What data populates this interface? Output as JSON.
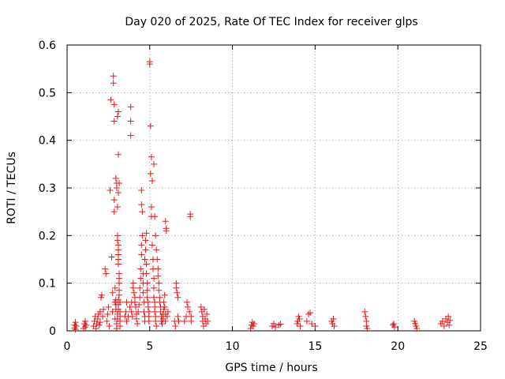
{
  "chart_data": {
    "type": "scatter",
    "title": "Day 020 of 2025, Rate Of TEC Index for receiver glps",
    "xlabel": "GPS time / hours",
    "ylabel": "ROTI / TECUs",
    "xlim": [
      0,
      25
    ],
    "ylim": [
      0,
      0.6
    ],
    "xticks": [
      "0",
      "5",
      "10",
      "15",
      "20",
      "25"
    ],
    "yticks": [
      "0",
      "0.1",
      "0.2",
      "0.3",
      "0.4",
      "0.5",
      "0.6"
    ],
    "grid": true,
    "marker": "plus",
    "color": "#e41a1c",
    "series": [
      {
        "name": "ROTI",
        "points": [
          [
            0.45,
            0.012
          ],
          [
            0.45,
            0.006
          ],
          [
            0.5,
            0.018
          ],
          [
            0.5,
            0.003
          ],
          [
            0.55,
            0.01
          ],
          [
            1.0,
            0.005
          ],
          [
            1.05,
            0.015
          ],
          [
            1.1,
            0.02
          ],
          [
            1.1,
            0.008
          ],
          [
            1.15,
            0.012
          ],
          [
            1.6,
            0.01
          ],
          [
            1.65,
            0.02
          ],
          [
            1.7,
            0.03
          ],
          [
            1.75,
            0.005
          ],
          [
            1.8,
            0.015
          ],
          [
            1.85,
            0.025
          ],
          [
            1.9,
            0.035
          ],
          [
            1.95,
            0.012
          ],
          [
            2.0,
            0.018
          ],
          [
            2.0,
            0.04
          ],
          [
            2.05,
            0.07
          ],
          [
            2.1,
            0.075
          ],
          [
            2.15,
            0.03
          ],
          [
            2.2,
            0.045
          ],
          [
            2.3,
            0.13
          ],
          [
            2.35,
            0.12
          ],
          [
            2.4,
            0.02
          ],
          [
            2.45,
            0.035
          ],
          [
            2.5,
            0.05
          ],
          [
            2.55,
            0.01
          ],
          [
            2.6,
            0.295
          ],
          [
            2.65,
            0.485
          ],
          [
            2.7,
            0.155
          ],
          [
            2.75,
            0.04
          ],
          [
            2.75,
            0.08
          ],
          [
            2.8,
            0.535
          ],
          [
            2.8,
            0.52
          ],
          [
            2.85,
            0.475
          ],
          [
            2.85,
            0.44
          ],
          [
            2.85,
            0.25
          ],
          [
            2.85,
            0.275
          ],
          [
            2.9,
            0.09
          ],
          [
            2.9,
            0.06
          ],
          [
            2.9,
            0.025
          ],
          [
            2.95,
            0.32
          ],
          [
            3.0,
            0.31
          ],
          [
            3.0,
            0.3
          ],
          [
            3.05,
            0.26
          ],
          [
            3.05,
            0.2
          ],
          [
            3.05,
            0.19
          ],
          [
            3.1,
            0.18
          ],
          [
            3.1,
            0.17
          ],
          [
            3.1,
            0.16
          ],
          [
            3.1,
            0.15
          ],
          [
            3.1,
            0.14
          ],
          [
            3.15,
            0.12
          ],
          [
            3.15,
            0.11
          ],
          [
            3.15,
            0.1
          ],
          [
            3.15,
            0.085
          ],
          [
            3.15,
            0.075
          ],
          [
            3.1,
            0.065
          ],
          [
            3.1,
            0.055
          ],
          [
            3.1,
            0.045
          ],
          [
            3.05,
            0.035
          ],
          [
            3.05,
            0.025
          ],
          [
            3.0,
            0.015
          ],
          [
            3.0,
            0.005
          ],
          [
            2.95,
            0.045
          ],
          [
            2.95,
            0.055
          ],
          [
            2.95,
            0.065
          ],
          [
            3.2,
            0.06
          ],
          [
            3.2,
            0.04
          ],
          [
            3.2,
            0.03
          ],
          [
            3.2,
            0.02
          ],
          [
            3.2,
            0.01
          ],
          [
            3.05,
            0.45
          ],
          [
            3.1,
            0.46
          ],
          [
            3.1,
            0.37
          ],
          [
            3.15,
            0.31
          ],
          [
            3.1,
            0.29
          ],
          [
            3.5,
            0.03
          ],
          [
            3.55,
            0.04
          ],
          [
            3.6,
            0.02
          ],
          [
            3.6,
            0.06
          ],
          [
            3.7,
            0.03
          ],
          [
            3.8,
            0.05
          ],
          [
            3.85,
            0.47
          ],
          [
            3.85,
            0.44
          ],
          [
            3.85,
            0.41
          ],
          [
            3.9,
            0.06
          ],
          [
            3.9,
            0.04
          ],
          [
            3.95,
            0.03
          ],
          [
            4.0,
            0.1
          ],
          [
            4.0,
            0.09
          ],
          [
            4.05,
            0.08
          ],
          [
            4.1,
            0.07
          ],
          [
            4.1,
            0.06
          ],
          [
            4.15,
            0.05
          ],
          [
            4.2,
            0.035
          ],
          [
            4.2,
            0.025
          ],
          [
            4.25,
            0.015
          ],
          [
            4.3,
            0.04
          ],
          [
            4.35,
            0.055
          ],
          [
            4.4,
            0.07
          ],
          [
            4.4,
            0.09
          ],
          [
            4.45,
            0.11
          ],
          [
            4.45,
            0.13
          ],
          [
            4.5,
            0.16
          ],
          [
            4.5,
            0.18
          ],
          [
            4.55,
            0.2
          ],
          [
            4.55,
            0.25
          ],
          [
            4.5,
            0.265
          ],
          [
            4.5,
            0.295
          ],
          [
            4.6,
            0.12
          ],
          [
            4.6,
            0.1
          ],
          [
            4.6,
            0.08
          ],
          [
            4.65,
            0.06
          ],
          [
            4.65,
            0.04
          ],
          [
            4.7,
            0.03
          ],
          [
            4.7,
            0.02
          ],
          [
            4.7,
            0.15
          ],
          [
            4.75,
            0.17
          ],
          [
            4.75,
            0.19
          ],
          [
            4.8,
            0.205
          ],
          [
            4.8,
            0.14
          ],
          [
            4.8,
            0.12
          ],
          [
            4.85,
            0.1
          ],
          [
            4.85,
            0.085
          ],
          [
            4.85,
            0.07
          ],
          [
            4.9,
            0.06
          ],
          [
            4.9,
            0.05
          ],
          [
            4.95,
            0.04
          ],
          [
            4.95,
            0.03
          ],
          [
            4.95,
            0.02
          ],
          [
            5.0,
            0.565
          ],
          [
            5.0,
            0.56
          ],
          [
            5.05,
            0.43
          ],
          [
            5.1,
            0.365
          ],
          [
            5.05,
            0.33
          ],
          [
            5.15,
            0.315
          ],
          [
            5.1,
            0.26
          ],
          [
            5.1,
            0.24
          ],
          [
            5.15,
            0.18
          ],
          [
            5.2,
            0.15
          ],
          [
            5.2,
            0.13
          ],
          [
            5.25,
            0.11
          ],
          [
            5.25,
            0.09
          ],
          [
            5.25,
            0.07
          ],
          [
            5.3,
            0.06
          ],
          [
            5.3,
            0.05
          ],
          [
            5.3,
            0.04
          ],
          [
            5.35,
            0.03
          ],
          [
            5.35,
            0.02
          ],
          [
            5.4,
            0.01
          ],
          [
            5.25,
            0.35
          ],
          [
            5.3,
            0.24
          ],
          [
            5.35,
            0.2
          ],
          [
            5.4,
            0.17
          ],
          [
            5.45,
            0.15
          ],
          [
            5.5,
            0.13
          ],
          [
            5.5,
            0.115
          ],
          [
            5.55,
            0.1
          ],
          [
            5.55,
            0.085
          ],
          [
            5.6,
            0.07
          ],
          [
            5.6,
            0.06
          ],
          [
            5.65,
            0.05
          ],
          [
            5.65,
            0.04
          ],
          [
            5.7,
            0.03
          ],
          [
            5.7,
            0.02
          ],
          [
            5.75,
            0.015
          ],
          [
            5.8,
            0.025
          ],
          [
            5.8,
            0.035
          ],
          [
            5.85,
            0.045
          ],
          [
            5.85,
            0.06
          ],
          [
            5.9,
            0.075
          ],
          [
            5.9,
            0.05
          ],
          [
            5.95,
            0.035
          ],
          [
            5.95,
            0.02
          ],
          [
            5.95,
            0.23
          ],
          [
            6.0,
            0.215
          ],
          [
            6.0,
            0.21
          ],
          [
            6.05,
            0.03
          ],
          [
            6.1,
            0.04
          ],
          [
            6.5,
            0.02
          ],
          [
            6.55,
            0.01
          ],
          [
            6.6,
            0.1
          ],
          [
            6.6,
            0.09
          ],
          [
            6.65,
            0.08
          ],
          [
            6.7,
            0.07
          ],
          [
            6.7,
            0.03
          ],
          [
            6.75,
            0.02
          ],
          [
            7.1,
            0.02
          ],
          [
            7.2,
            0.03
          ],
          [
            7.25,
            0.06
          ],
          [
            7.3,
            0.05
          ],
          [
            7.4,
            0.04
          ],
          [
            7.45,
            0.245
          ],
          [
            7.45,
            0.24
          ],
          [
            7.5,
            0.02
          ],
          [
            7.5,
            0.03
          ],
          [
            8.1,
            0.05
          ],
          [
            8.15,
            0.04
          ],
          [
            8.2,
            0.03
          ],
          [
            8.2,
            0.02
          ],
          [
            8.25,
            0.01
          ],
          [
            8.3,
            0.045
          ],
          [
            8.35,
            0.025
          ],
          [
            8.4,
            0.015
          ],
          [
            8.45,
            0.035
          ],
          [
            8.5,
            0.02
          ],
          [
            11.1,
            0.005
          ],
          [
            11.15,
            0.012
          ],
          [
            11.2,
            0.018
          ],
          [
            11.25,
            0.01
          ],
          [
            11.3,
            0.015
          ],
          [
            12.4,
            0.01
          ],
          [
            12.5,
            0.015
          ],
          [
            12.6,
            0.008
          ],
          [
            12.8,
            0.012
          ],
          [
            12.9,
            0.014
          ],
          [
            13.9,
            0.015
          ],
          [
            13.95,
            0.02
          ],
          [
            14.0,
            0.03
          ],
          [
            14.05,
            0.025
          ],
          [
            14.1,
            0.01
          ],
          [
            14.5,
            0.02
          ],
          [
            14.6,
            0.035
          ],
          [
            14.7,
            0.038
          ],
          [
            14.8,
            0.015
          ],
          [
            15.0,
            0.01
          ],
          [
            16.0,
            0.02
          ],
          [
            16.05,
            0.015
          ],
          [
            16.1,
            0.025
          ],
          [
            16.15,
            0.01
          ],
          [
            18.0,
            0.04
          ],
          [
            18.05,
            0.03
          ],
          [
            18.1,
            0.02
          ],
          [
            18.1,
            0.01
          ],
          [
            18.15,
            0.005
          ],
          [
            19.7,
            0.012
          ],
          [
            19.75,
            0.015
          ],
          [
            19.8,
            0.008
          ],
          [
            21.0,
            0.02
          ],
          [
            21.05,
            0.015
          ],
          [
            21.1,
            0.01
          ],
          [
            21.15,
            0.005
          ],
          [
            22.6,
            0.015
          ],
          [
            22.7,
            0.02
          ],
          [
            22.8,
            0.01
          ],
          [
            22.9,
            0.025
          ],
          [
            23.0,
            0.018
          ],
          [
            23.05,
            0.03
          ],
          [
            23.1,
            0.012
          ],
          [
            23.15,
            0.022
          ]
        ]
      }
    ]
  }
}
